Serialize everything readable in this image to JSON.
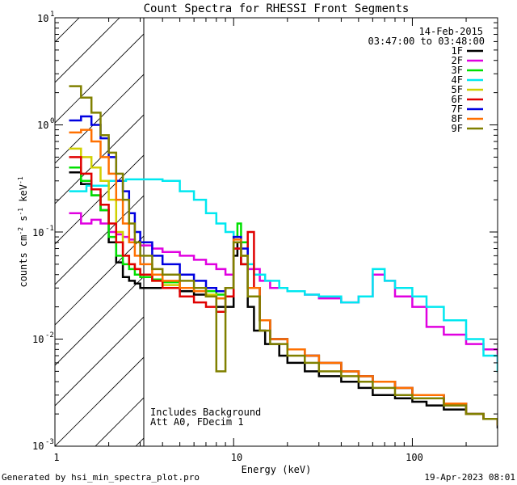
{
  "chart_data": {
    "type": "line",
    "title": "Count Spectra for RHESSI Front Segments",
    "xlabel": "Energy (keV)",
    "ylabel": "counts cm^-2 s^-1 keV^-1",
    "xscale": "log",
    "yscale": "log",
    "xlim": [
      1.0,
      300
    ],
    "ylim": [
      0.001,
      10
    ],
    "x_tick_labels": [
      "1",
      "10",
      "100"
    ],
    "y_tick_labels": [
      "10^-3",
      "10^-2",
      "10^-1",
      "10^0",
      "10^1"
    ],
    "date": "14-Feb-2015",
    "time_range": "03:47:00 to 03:48:00",
    "annotations": [
      "Includes Background",
      "Att A0, FDecim 1"
    ],
    "footer_left": "Generated by hsi_min_spectra_plot.pro",
    "footer_right": "19-Apr-2023 08:01",
    "hatched_region_keV": [
      1.0,
      3.0
    ],
    "series": [
      {
        "name": "1F",
        "color": "#000000",
        "x": [
          1.2,
          1.4,
          1.6,
          1.8,
          2.0,
          2.2,
          2.4,
          2.6,
          2.8,
          3.0,
          3.5,
          4,
          5,
          6,
          7,
          8,
          9,
          10,
          10.5,
          11,
          12,
          13,
          15,
          18,
          20,
          25,
          30,
          40,
          50,
          60,
          80,
          100,
          120,
          150,
          200,
          250,
          300
        ],
        "y": [
          0.36,
          0.28,
          0.22,
          0.16,
          0.08,
          0.052,
          0.038,
          0.035,
          0.033,
          0.03,
          0.03,
          0.03,
          0.028,
          0.026,
          0.025,
          0.02,
          0.02,
          0.06,
          0.08,
          0.05,
          0.02,
          0.012,
          0.009,
          0.007,
          0.006,
          0.005,
          0.0045,
          0.004,
          0.0035,
          0.003,
          0.0028,
          0.0026,
          0.0024,
          0.0022,
          0.002,
          0.0018,
          0.0015
        ]
      },
      {
        "name": "2F",
        "color": "#e000e0",
        "x": [
          1.2,
          1.4,
          1.6,
          1.8,
          2.0,
          2.2,
          2.4,
          2.6,
          2.8,
          3.0,
          3.5,
          4,
          5,
          6,
          7,
          8,
          9,
          10,
          11,
          12,
          14,
          16,
          20,
          25,
          30,
          40,
          50,
          60,
          70,
          80,
          100,
          120,
          150,
          200,
          250,
          300
        ],
        "y": [
          0.15,
          0.12,
          0.13,
          0.12,
          0.1,
          0.095,
          0.09,
          0.085,
          0.08,
          0.075,
          0.07,
          0.065,
          0.06,
          0.055,
          0.05,
          0.045,
          0.04,
          0.07,
          0.06,
          0.045,
          0.035,
          0.03,
          0.028,
          0.026,
          0.024,
          0.022,
          0.025,
          0.04,
          0.035,
          0.025,
          0.02,
          0.013,
          0.011,
          0.009,
          0.008,
          0.006
        ]
      },
      {
        "name": "3F",
        "color": "#00e000",
        "x": [
          1.2,
          1.4,
          1.6,
          1.8,
          2.0,
          2.2,
          2.4,
          2.6,
          2.8,
          3.0,
          3.5,
          4,
          5,
          6,
          7,
          8,
          9,
          10,
          10.5,
          11,
          12,
          14,
          16,
          20,
          25,
          30,
          40,
          50,
          60,
          80,
          100,
          150,
          200,
          250,
          300
        ],
        "y": [
          0.4,
          0.3,
          0.22,
          0.16,
          0.09,
          0.06,
          0.05,
          0.045,
          0.04,
          0.038,
          0.036,
          0.034,
          0.03,
          0.03,
          0.028,
          0.026,
          0.03,
          0.09,
          0.12,
          0.08,
          0.03,
          0.015,
          0.01,
          0.008,
          0.007,
          0.006,
          0.005,
          0.0045,
          0.004,
          0.0035,
          0.003,
          0.0025,
          0.002,
          0.0018,
          0.0016
        ]
      },
      {
        "name": "4F",
        "color": "#00e8f0",
        "x": [
          1.2,
          1.5,
          2.0,
          2.5,
          3.0,
          4,
          5,
          6,
          7,
          8,
          9,
          10,
          11,
          12,
          13,
          15,
          18,
          20,
          25,
          30,
          40,
          50,
          60,
          70,
          80,
          100,
          120,
          150,
          200,
          250,
          300
        ],
        "y": [
          0.24,
          0.27,
          0.3,
          0.31,
          0.31,
          0.3,
          0.24,
          0.2,
          0.15,
          0.12,
          0.1,
          0.08,
          0.06,
          0.05,
          0.04,
          0.035,
          0.03,
          0.028,
          0.026,
          0.025,
          0.022,
          0.025,
          0.045,
          0.035,
          0.03,
          0.025,
          0.02,
          0.015,
          0.01,
          0.007,
          0.005
        ]
      },
      {
        "name": "5F",
        "color": "#d0d000",
        "x": [
          1.2,
          1.4,
          1.6,
          1.8,
          2.0,
          2.2,
          2.4,
          2.6,
          2.8,
          3.0,
          3.5,
          4,
          5,
          6,
          7,
          8,
          9,
          10,
          11,
          12,
          14,
          16,
          20,
          25,
          30,
          40,
          50,
          60,
          80,
          100,
          150,
          200,
          250,
          300
        ],
        "y": [
          0.6,
          0.5,
          0.4,
          0.3,
          0.2,
          0.1,
          0.06,
          0.05,
          0.045,
          0.04,
          0.035,
          0.032,
          0.03,
          0.028,
          0.026,
          0.024,
          0.03,
          0.08,
          0.06,
          0.03,
          0.015,
          0.01,
          0.008,
          0.007,
          0.006,
          0.005,
          0.0045,
          0.004,
          0.0035,
          0.003,
          0.0025,
          0.002,
          0.0018,
          0.0016
        ]
      },
      {
        "name": "6F",
        "color": "#e00000",
        "x": [
          1.2,
          1.4,
          1.6,
          1.8,
          2.0,
          2.2,
          2.4,
          2.6,
          2.8,
          3.0,
          3.5,
          4,
          5,
          6,
          7,
          8,
          9,
          10,
          11,
          12,
          13,
          14,
          16,
          20,
          25,
          30,
          40,
          50,
          60,
          80,
          100,
          150,
          200,
          250,
          300
        ],
        "y": [
          0.5,
          0.35,
          0.25,
          0.18,
          0.12,
          0.08,
          0.06,
          0.05,
          0.045,
          0.04,
          0.035,
          0.03,
          0.025,
          0.022,
          0.02,
          0.018,
          0.025,
          0.07,
          0.05,
          0.1,
          0.03,
          0.015,
          0.01,
          0.008,
          0.007,
          0.006,
          0.005,
          0.0045,
          0.004,
          0.0035,
          0.003,
          0.0025,
          0.002,
          0.0018,
          0.0016
        ]
      },
      {
        "name": "7F",
        "color": "#0000e0",
        "x": [
          1.2,
          1.4,
          1.6,
          1.8,
          2.0,
          2.2,
          2.4,
          2.6,
          2.8,
          3.0,
          3.5,
          4,
          5,
          6,
          7,
          8,
          9,
          10,
          11,
          12,
          14,
          16,
          20,
          25,
          30,
          40,
          50,
          60,
          80,
          100,
          150,
          200,
          250,
          300
        ],
        "y": [
          1.1,
          1.2,
          1.0,
          0.75,
          0.5,
          0.3,
          0.24,
          0.15,
          0.1,
          0.08,
          0.06,
          0.05,
          0.04,
          0.035,
          0.03,
          0.028,
          0.03,
          0.09,
          0.07,
          0.03,
          0.015,
          0.01,
          0.008,
          0.007,
          0.006,
          0.005,
          0.0045,
          0.004,
          0.0035,
          0.003,
          0.0025,
          0.002,
          0.0018,
          0.0016
        ]
      },
      {
        "name": "8F",
        "color": "#ff7000",
        "x": [
          1.2,
          1.4,
          1.6,
          1.8,
          2.0,
          2.2,
          2.4,
          2.6,
          2.8,
          3.0,
          3.5,
          4,
          5,
          6,
          7,
          8,
          9,
          10,
          11,
          12,
          14,
          16,
          20,
          25,
          30,
          40,
          50,
          60,
          80,
          100,
          150,
          200,
          250,
          300
        ],
        "y": [
          0.85,
          0.9,
          0.7,
          0.5,
          0.35,
          0.2,
          0.12,
          0.08,
          0.06,
          0.05,
          0.04,
          0.035,
          0.03,
          0.028,
          0.025,
          0.024,
          0.03,
          0.085,
          0.06,
          0.03,
          0.015,
          0.01,
          0.008,
          0.007,
          0.006,
          0.005,
          0.0045,
          0.004,
          0.0035,
          0.003,
          0.0025,
          0.002,
          0.0018,
          0.0016
        ]
      },
      {
        "name": "9F",
        "color": "#808000",
        "x": [
          1.2,
          1.4,
          1.6,
          1.8,
          2.0,
          2.2,
          2.4,
          2.6,
          2.8,
          3.0,
          3.5,
          4,
          5,
          6,
          7,
          8,
          9,
          10,
          11,
          12,
          14,
          16,
          20,
          25,
          30,
          40,
          50,
          60,
          80,
          100,
          150,
          200,
          250,
          300
        ],
        "y": [
          2.3,
          1.8,
          1.3,
          0.8,
          0.55,
          0.35,
          0.2,
          0.12,
          0.08,
          0.06,
          0.045,
          0.04,
          0.035,
          0.03,
          0.025,
          0.005,
          0.03,
          0.08,
          0.06,
          0.025,
          0.012,
          0.009,
          0.007,
          0.006,
          0.005,
          0.0045,
          0.004,
          0.0035,
          0.003,
          0.0028,
          0.0024,
          0.002,
          0.0018,
          0.0016
        ]
      }
    ]
  }
}
